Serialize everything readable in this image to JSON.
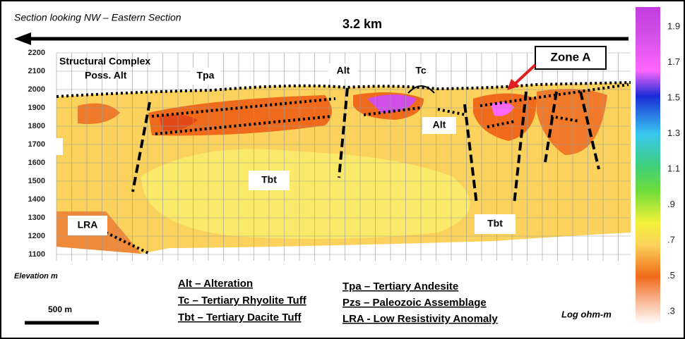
{
  "header": {
    "title": "Section looking NW – Eastern Section",
    "distance": "3.2 km"
  },
  "elevation_axis": {
    "label": "Elevation m",
    "ticks": [
      "2200",
      "2100",
      "2000",
      "1900",
      "1800",
      "1700",
      "1600",
      "1500",
      "1400",
      "1300",
      "1200",
      "1100"
    ]
  },
  "colorbar": {
    "label": "Log ohm-m",
    "ticks": [
      "1.9",
      "1.7",
      "1.5",
      "1.3",
      "1.1",
      ".9",
      ".7",
      ".5",
      ".3"
    ]
  },
  "section_labels": [
    "Structural Complex",
    "Poss. Alt",
    "Tpa",
    "Alt",
    "Tc",
    "Alt",
    "Tbt",
    "Tbt",
    "LRA"
  ],
  "callout": "Zone A",
  "legend": [
    "Alt – Alteration",
    "Tc – Tertiary Rhyolite Tuff",
    "Tbt – Tertiary Dacite Tuff",
    "Tpa – Tertiary Andesite",
    "Pzs – Paleozoic Assemblage",
    "LRA - Low Resistivity Anomaly"
  ],
  "scale_bar": "500 m"
}
